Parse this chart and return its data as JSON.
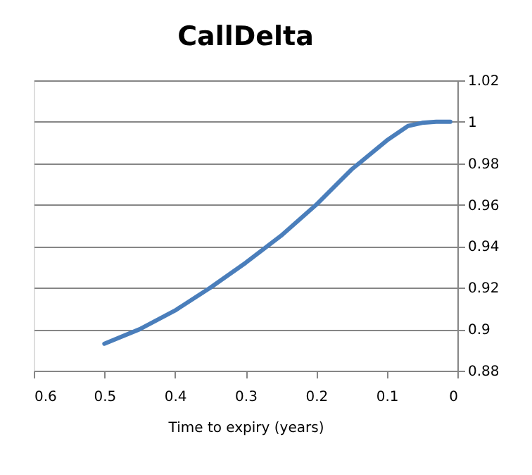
{
  "chart_data": {
    "type": "line",
    "title": "CallDelta",
    "xlabel": "Time to expiry (years)",
    "x": [
      0.5,
      0.45,
      0.4,
      0.35,
      0.3,
      0.25,
      0.2,
      0.15,
      0.1,
      0.07,
      0.05,
      0.03,
      0.01
    ],
    "series": [
      {
        "color": "#4a7ebb",
        "values": [
          0.893,
          0.9,
          0.909,
          0.92,
          0.932,
          0.945,
          0.96,
          0.977,
          0.991,
          0.998,
          0.9995,
          1.0,
          1.0
        ]
      }
    ],
    "xlim": [
      0.6,
      0
    ],
    "xticks": [
      0.6,
      0.5,
      0.4,
      0.3,
      0.2,
      0.1,
      0
    ],
    "ylim": [
      0.88,
      1.02
    ],
    "yticks": [
      0.88,
      0.9,
      0.92,
      0.94,
      0.96,
      0.98,
      1,
      1.02
    ],
    "grid": "y",
    "marker": "none",
    "line_style": "solid"
  }
}
